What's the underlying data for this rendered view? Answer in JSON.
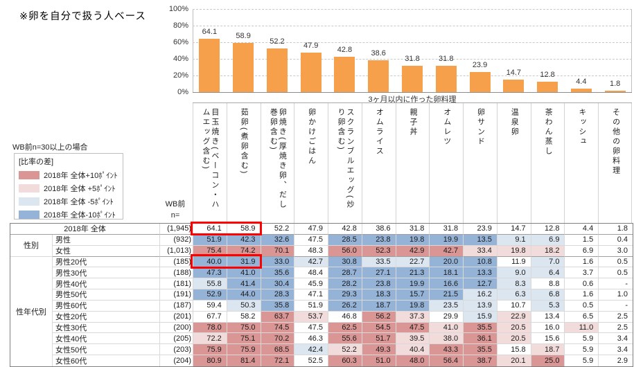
{
  "note": "※卵を自分で扱う人ベース",
  "chart_data": {
    "type": "bar",
    "title": "",
    "xlabel": "3ヶ月以内に作った卵料理",
    "ylabel": "",
    "ylim": [
      0,
      100
    ],
    "yticks": [
      "100%",
      "80%",
      "60%",
      "40%",
      "20%",
      "0%"
    ],
    "grid": true,
    "bar_color": "#F7A04C",
    "categories": [
      "目玉焼き(ベーコン・ハムエッグ含む)",
      "茹卵(煮卵含む)",
      "卵焼き(厚焼き卵、だし巻卵含む)",
      "卵かけごはん",
      "スクランブルエッグ(炒り卵含む)",
      "オムライス",
      "親子丼",
      "オムレツ",
      "卵サンド",
      "温泉卵",
      "茶わん蒸し",
      "キッシュ",
      "その他の卵料理"
    ],
    "values": [
      64.1,
      58.9,
      52.2,
      47.9,
      42.8,
      38.6,
      31.8,
      31.8,
      23.9,
      14.7,
      12.8,
      4.4,
      1.8
    ]
  },
  "legend": {
    "condition": "WB前n=30以上の場合",
    "title": "[比率の差]",
    "items": [
      {
        "label": "2018年 全体+10ﾎﾟｲﾝﾄ",
        "color": "#D99694"
      },
      {
        "label": "2018年 全体 +5ﾎﾟｲﾝﾄ",
        "color": "#F2DCDB"
      },
      {
        "label": "2018年 全体 -5ﾎﾟｲﾝﾄ",
        "color": "#DCE6F1"
      },
      {
        "label": "2018年 全体-10ﾎﾟｲﾝﾄ",
        "color": "#95B3D7"
      }
    ]
  },
  "table": {
    "n_header_line1": "WB前",
    "n_header_line2": "n=",
    "diff_colors": {
      "plus10": "#D99694",
      "plus5": "#F2DCDB",
      "minus5": "#DCE6F1",
      "minus10": "#95B3D7"
    },
    "highlight_color": "#FE0000",
    "highlights": [
      {
        "row": 0,
        "col_start": 0,
        "col_count": 2
      },
      {
        "row": 3,
        "col_start": 0,
        "col_count": 2
      }
    ],
    "rows": [
      {
        "group": null,
        "group_span": 0,
        "label": "2018年 全体",
        "n": "(1,945)",
        "values": [
          "64.1",
          "58.9",
          "52.2",
          "47.9",
          "42.8",
          "38.6",
          "31.8",
          "31.8",
          "23.9",
          "14.7",
          "12.8",
          "4.4",
          "1.8"
        ]
      },
      {
        "group": "性別",
        "group_span": 2,
        "label": "男性",
        "n": "(932)",
        "values": [
          "51.9",
          "42.3",
          "32.6",
          "47.5",
          "28.5",
          "23.8",
          "19.8",
          "19.9",
          "13.5",
          "9.1",
          "6.9",
          "1.5",
          "0.4"
        ]
      },
      {
        "group": null,
        "group_span": 0,
        "label": "女性",
        "n": "(1,013)",
        "values": [
          "75.4",
          "74.2",
          "70.1",
          "48.3",
          "56.0",
          "52.3",
          "42.9",
          "42.7",
          "33.4",
          "19.8",
          "18.2",
          "6.9",
          "3.0"
        ]
      },
      {
        "group": "性年代別",
        "group_span": 10,
        "label": "男性20代",
        "n": "(185)",
        "values": [
          "40.0",
          "31.9",
          "33.0",
          "42.7",
          "30.8",
          "33.5",
          "22.7",
          "20.0",
          "10.8",
          "11.9",
          "7.0",
          "1.6",
          "0.5"
        ]
      },
      {
        "group": null,
        "group_span": 0,
        "label": "男性30代",
        "n": "(188)",
        "values": [
          "47.3",
          "41.0",
          "35.6",
          "48.4",
          "28.7",
          "27.1",
          "21.3",
          "18.1",
          "13.3",
          "9.0",
          "6.4",
          "3.7",
          "0.5"
        ]
      },
      {
        "group": null,
        "group_span": 0,
        "label": "男性40代",
        "n": "(181)",
        "values": [
          "55.8",
          "41.4",
          "30.4",
          "45.9",
          "28.2",
          "23.8",
          "19.9",
          "16.6",
          "12.7",
          "8.3",
          "8.8",
          "0.6",
          "-"
        ]
      },
      {
        "group": null,
        "group_span": 0,
        "label": "男性50代",
        "n": "(191)",
        "values": [
          "52.9",
          "44.0",
          "28.3",
          "47.1",
          "29.3",
          "18.3",
          "15.7",
          "21.5",
          "16.2",
          "6.3",
          "6.8",
          "1.6",
          "1.0"
        ]
      },
      {
        "group": null,
        "group_span": 0,
        "label": "男性60代",
        "n": "(187)",
        "values": [
          "59.4",
          "50.3",
          "35.8",
          "51.9",
          "26.2",
          "18.7",
          "19.8",
          "23.5",
          "13.9",
          "10.7",
          "5.3",
          "0.5",
          "-"
        ]
      },
      {
        "group": null,
        "group_span": 0,
        "label": "女性20代",
        "n": "(201)",
        "values": [
          "67.7",
          "58.2",
          "63.7",
          "53.7",
          "46.8",
          "56.2",
          "37.3",
          "29.9",
          "15.9",
          "22.9",
          "13.4",
          "6.5",
          "2.5"
        ]
      },
      {
        "group": null,
        "group_span": 0,
        "label": "女性30代",
        "n": "(200)",
        "values": [
          "78.0",
          "75.0",
          "74.5",
          "47.5",
          "62.5",
          "54.5",
          "47.5",
          "41.0",
          "35.5",
          "20.5",
          "16.0",
          "11.0",
          "2.5"
        ]
      },
      {
        "group": null,
        "group_span": 0,
        "label": "女性40代",
        "n": "(205)",
        "values": [
          "72.2",
          "75.1",
          "70.2",
          "46.3",
          "55.6",
          "51.7",
          "39.5",
          "38.0",
          "36.1",
          "20.5",
          "15.6",
          "5.9",
          "3.4"
        ]
      },
      {
        "group": null,
        "group_span": 0,
        "label": "女性50代",
        "n": "(203)",
        "values": [
          "75.9",
          "75.9",
          "68.5",
          "42.4",
          "52.2",
          "49.3",
          "40.4",
          "43.3",
          "35.5",
          "15.8",
          "18.7",
          "5.9",
          "3.4"
        ]
      },
      {
        "group": null,
        "group_span": 0,
        "label": "女性60代",
        "n": "(204)",
        "values": [
          "80.9",
          "81.4",
          "72.1",
          "52.5",
          "60.3",
          "51.0",
          "48.0",
          "56.4",
          "38.7",
          "20.1",
          "25.0",
          "5.9",
          "2.9"
        ]
      }
    ]
  }
}
